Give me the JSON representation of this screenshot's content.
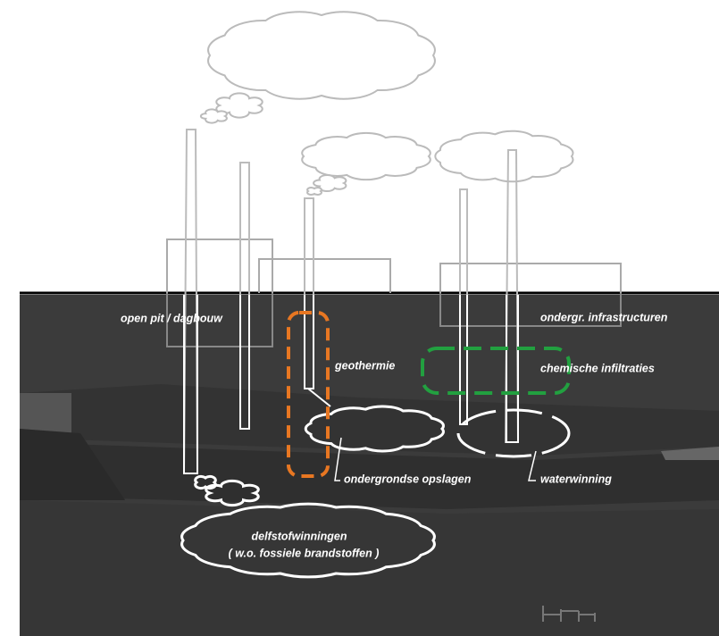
{
  "labels": {
    "open_pit": "open pit / dagbouw",
    "geothermie": "geothermie",
    "infrastructuren": "ondergr. infrastructuren",
    "infiltraties": "chemische infiltraties",
    "opslagen": "ondergrondse opslagen",
    "waterwinning": "waterwinning",
    "delfstof": [
      "delfstofwinningen",
      "( w.o. fossiele brandstoffen )"
    ]
  }
}
